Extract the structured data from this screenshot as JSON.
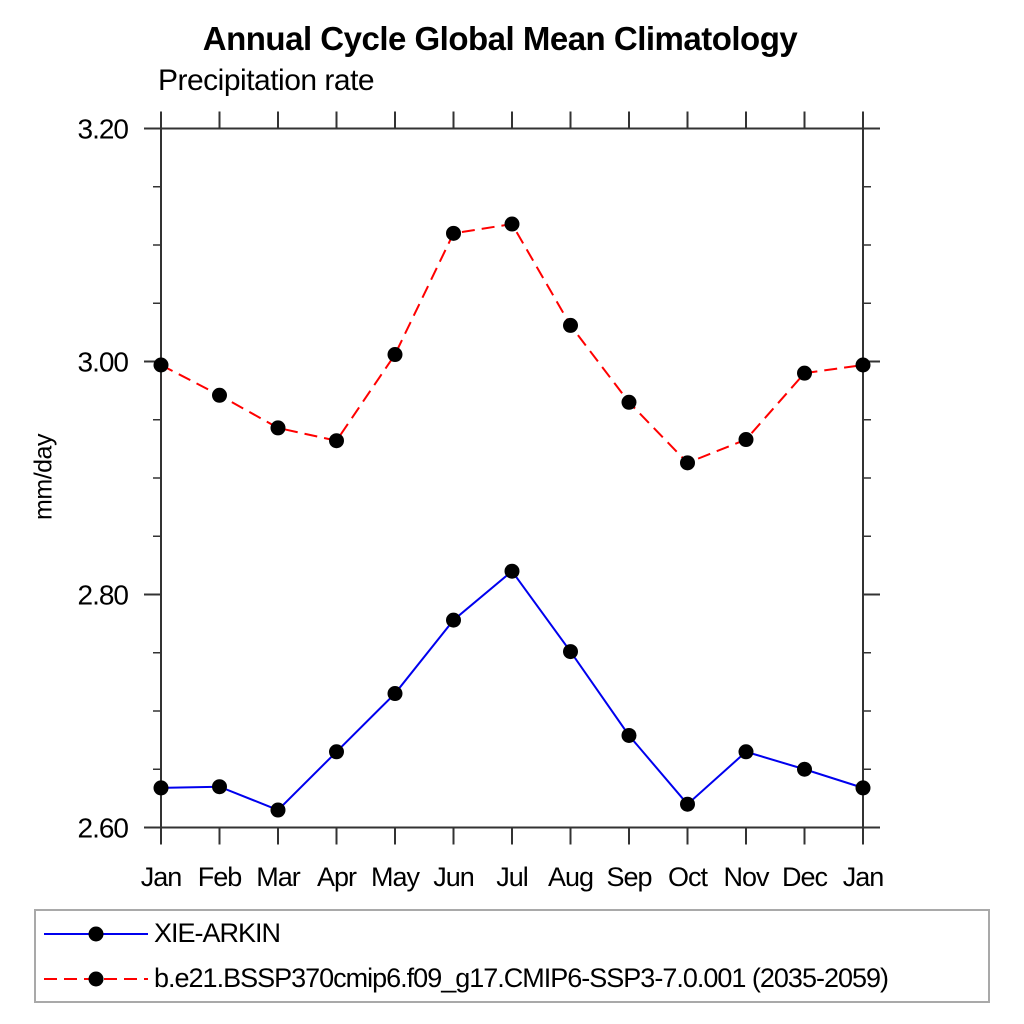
{
  "chart_data": {
    "type": "line",
    "title": "Annual Cycle Global Mean Climatology",
    "subtitle": "Precipitation rate",
    "ylabel": "mm/day",
    "x_categories": [
      "Jan",
      "Feb",
      "Mar",
      "Apr",
      "May",
      "Jun",
      "Jul",
      "Aug",
      "Sep",
      "Oct",
      "Nov",
      "Dec",
      "Jan"
    ],
    "ylim": [
      2.6,
      3.2
    ],
    "ytick_major_values": [
      2.6,
      2.8,
      3.0,
      3.2
    ],
    "ytick_major_labels": [
      "2.60",
      "2.80",
      "3.00",
      "3.20"
    ],
    "ytick_minor_step": 0.05,
    "grid": false,
    "legend_position": "bottom-left-box",
    "series": [
      {
        "name": "XIE-ARKIN",
        "color": "#0000ee",
        "line_style": "solid",
        "marker": "filled-circle",
        "marker_color": "#000000",
        "values": [
          2.634,
          2.635,
          2.615,
          2.665,
          2.715,
          2.778,
          2.82,
          2.751,
          2.679,
          2.62,
          2.665,
          2.65,
          2.634
        ]
      },
      {
        "name": "b.e21.BSSP370cmip6.f09_g17.CMIP6-SSP3-7.0.001 (2035-2059)",
        "color": "#ff0000",
        "line_style": "dashed",
        "marker": "filled-circle",
        "marker_color": "#000000",
        "values": [
          2.997,
          2.971,
          2.943,
          2.932,
          3.006,
          3.11,
          3.118,
          3.031,
          2.965,
          2.913,
          2.933,
          2.99,
          2.997
        ]
      }
    ]
  },
  "colors": {
    "axis": "#333333",
    "text": "#000000",
    "series_blue": "#0000ee",
    "series_red": "#ff0000",
    "marker": "#000000",
    "legend_border": "#a9a9a9",
    "background": "#ffffff"
  }
}
